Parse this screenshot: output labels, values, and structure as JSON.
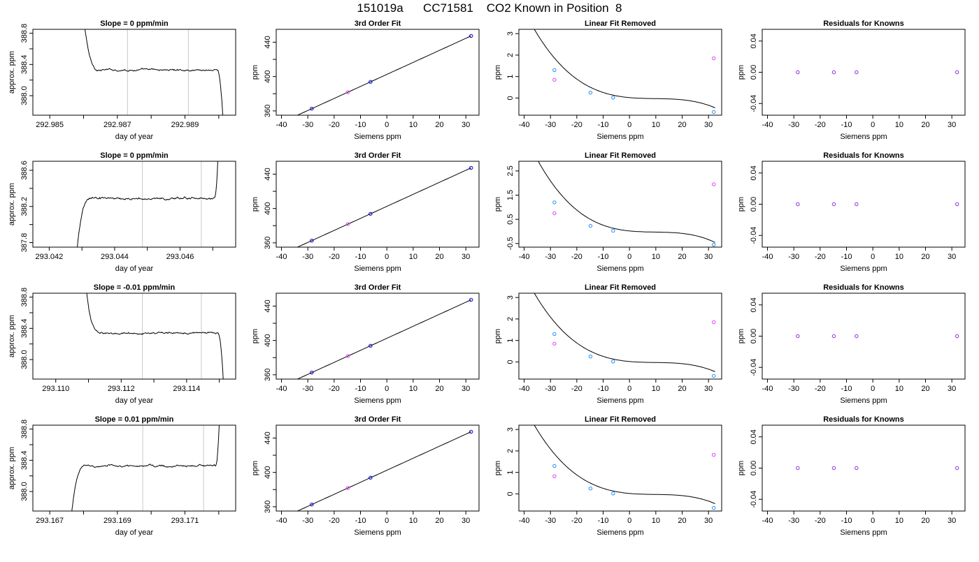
{
  "page_title": "151019a      CC71581    CO2 Known in Position  8",
  "colors": {
    "trace": "#000000",
    "window_lines": "#c8c8c8",
    "fit_point": "#1e90ff",
    "known_point": "#0000cd",
    "raw_point": "#e040fb",
    "residual_point": "#8a2be2"
  },
  "chart_data": [
    {
      "type": "line",
      "row": 1,
      "title": "Slope =  0  ppm/min",
      "xlabel": "day of year",
      "ylabel": "approx. ppm",
      "xlim": [
        292.9845,
        292.9905
      ],
      "ylim": [
        387.75,
        388.85
      ],
      "xticks": [
        292.985,
        292.986,
        292.987,
        292.988,
        292.989,
        292.99
      ],
      "xtick_labels": [
        "292.985",
        "",
        "292.987",
        "",
        "292.989",
        ""
      ],
      "yticks": [
        388.0,
        388.2,
        388.4,
        388.6,
        388.8
      ],
      "ytick_labels": [
        "388.0",
        "",
        "388.4",
        "",
        "388.8"
      ],
      "vlines": [
        292.9873,
        292.9891
      ],
      "trace": {
        "x_start": 292.9859,
        "x_end": 292.99015,
        "level": 388.33,
        "start_value": 389.5,
        "end_value": 387.5,
        "rise_end": 292.9865,
        "fall_start": 292.98995,
        "noise": 0.012
      },
      "points": []
    },
    {
      "type": "scatter",
      "row": 1,
      "title": "3rd Order Fit",
      "xlabel": "Siemens ppm",
      "ylabel": "ppm",
      "xlim": [
        -42,
        35
      ],
      "ylim": [
        355,
        455
      ],
      "xticks": [
        -40,
        -30,
        -20,
        -10,
        0,
        10,
        20,
        30
      ],
      "yticks": [
        360,
        380,
        400,
        420,
        440
      ],
      "ytick_labels": [
        "360",
        "",
        "400",
        "",
        "440"
      ],
      "curve": [
        -40,
        32
      ],
      "line_fn": "linear",
      "line_coef": [
        402.5,
        1.4,
        0,
        0
      ],
      "points": [
        {
          "x": -28.5,
          "y": 362.6,
          "color": "#0000cd"
        },
        {
          "x": -14.8,
          "y": 381.8,
          "color": "#e040fb"
        },
        {
          "x": -6.2,
          "y": 393.8,
          "color": "#0000cd"
        },
        {
          "x": 32.0,
          "y": 447.3,
          "color": "#0000cd"
        }
      ]
    },
    {
      "type": "scatter",
      "row": 1,
      "title": "Linear Fit Removed",
      "xlabel": "Siemens ppm",
      "ylabel": "ppm",
      "xlim": [
        -42,
        35
      ],
      "ylim": [
        -0.8,
        3.2
      ],
      "xticks": [
        -40,
        -30,
        -20,
        -10,
        0,
        10,
        20,
        30
      ],
      "yticks": [
        0,
        1,
        2,
        3
      ],
      "ytick_labels": [
        "0",
        "1",
        "2",
        "3"
      ],
      "curve": [
        -39,
        32.5
      ],
      "line_fn": "cubic",
      "line_coef": [
        0.02,
        -0.011,
        0.00095,
        -3.27e-05
      ],
      "points": [
        {
          "x": -28.5,
          "y": 1.3,
          "color": "#1e90ff"
        },
        {
          "x": -28.5,
          "y": 0.85,
          "color": "#e040fb"
        },
        {
          "x": -14.8,
          "y": 0.25,
          "color": "#1e90ff"
        },
        {
          "x": -6.2,
          "y": 0.02,
          "color": "#1e90ff"
        },
        {
          "x": 32.0,
          "y": 1.85,
          "color": "#e040fb"
        },
        {
          "x": 32.0,
          "y": -0.65,
          "color": "#1e90ff"
        }
      ]
    },
    {
      "type": "scatter",
      "row": 1,
      "title": "Residuals for Knowns",
      "xlabel": "Siemens ppm",
      "ylabel": "ppm",
      "xlim": [
        -42,
        35
      ],
      "ylim": [
        -0.055,
        0.055
      ],
      "xticks": [
        -40,
        -30,
        -20,
        -10,
        0,
        10,
        20,
        30
      ],
      "yticks": [
        -0.04,
        0.0,
        0.04
      ],
      "ytick_labels": [
        "-0.04",
        "0.00",
        "0.04"
      ],
      "points": [
        {
          "x": -28.5,
          "y": 0,
          "color": "#8a2be2"
        },
        {
          "x": -14.8,
          "y": 0,
          "color": "#8a2be2"
        },
        {
          "x": -6.2,
          "y": 0,
          "color": "#8a2be2"
        },
        {
          "x": 32.0,
          "y": 0,
          "color": "#8a2be2"
        }
      ]
    },
    {
      "type": "line",
      "row": 2,
      "title": "Slope =  0  ppm/min",
      "xlabel": "day of year",
      "ylabel": "approx. ppm",
      "xlim": [
        293.0415,
        293.0477
      ],
      "ylim": [
        387.75,
        388.7
      ],
      "xticks": [
        293.042,
        293.043,
        293.044,
        293.045,
        293.046,
        293.047
      ],
      "xtick_labels": [
        "293.042",
        "",
        "293.044",
        "",
        "293.046",
        ""
      ],
      "yticks": [
        387.8,
        388.0,
        388.2,
        388.4,
        388.6
      ],
      "ytick_labels": [
        "387.8",
        "",
        "388.2",
        "",
        "388.6"
      ],
      "vlines": [
        293.04485,
        293.04665
      ],
      "trace": {
        "x_start": 293.0428,
        "x_end": 293.0472,
        "level": 388.29,
        "start_value": 387.5,
        "end_value": 389.2,
        "rise_end": 293.0433,
        "fall_start": 293.04705,
        "noise": 0.012
      },
      "points": []
    },
    {
      "type": "scatter",
      "row": 2,
      "title": "3rd Order Fit",
      "xlabel": "Siemens ppm",
      "ylabel": "ppm",
      "xlim": [
        -42,
        35
      ],
      "ylim": [
        355,
        455
      ],
      "xticks": [
        -40,
        -30,
        -20,
        -10,
        0,
        10,
        20,
        30
      ],
      "yticks": [
        360,
        380,
        400,
        420,
        440
      ],
      "ytick_labels": [
        "360",
        "",
        "400",
        "",
        "440"
      ],
      "curve": [
        -40,
        32
      ],
      "line_fn": "linear",
      "line_coef": [
        402.5,
        1.4,
        0,
        0
      ],
      "points": [
        {
          "x": -28.5,
          "y": 362.6,
          "color": "#0000cd"
        },
        {
          "x": -14.8,
          "y": 381.8,
          "color": "#e040fb"
        },
        {
          "x": -6.2,
          "y": 393.8,
          "color": "#0000cd"
        },
        {
          "x": 32.0,
          "y": 447.3,
          "color": "#0000cd"
        }
      ]
    },
    {
      "type": "scatter",
      "row": 2,
      "title": "Linear Fit Removed",
      "xlabel": "Siemens ppm",
      "ylabel": "ppm",
      "xlim": [
        -42,
        35
      ],
      "ylim": [
        -0.65,
        2.9
      ],
      "xticks": [
        -40,
        -30,
        -20,
        -10,
        0,
        10,
        20,
        30
      ],
      "yticks": [
        -0.5,
        0.5,
        1.5,
        2.5
      ],
      "ytick_labels": [
        "-0.5",
        "0.5",
        "1.5",
        "2.5"
      ],
      "curve": [
        -39,
        32.5
      ],
      "line_fn": "cubic",
      "line_coef": [
        0.02,
        -0.011,
        0.00095,
        -3.27e-05
      ],
      "points": [
        {
          "x": -28.5,
          "y": 1.2,
          "color": "#1e90ff"
        },
        {
          "x": -28.5,
          "y": 0.75,
          "color": "#e040fb"
        },
        {
          "x": -14.8,
          "y": 0.23,
          "color": "#1e90ff"
        },
        {
          "x": -6.2,
          "y": 0.03,
          "color": "#1e90ff"
        },
        {
          "x": 32.0,
          "y": 1.95,
          "color": "#e040fb"
        },
        {
          "x": 32.0,
          "y": -0.55,
          "color": "#1e90ff"
        }
      ]
    },
    {
      "type": "scatter",
      "row": 2,
      "title": "Residuals for Knowns",
      "xlabel": "Siemens ppm",
      "ylabel": "ppm",
      "xlim": [
        -42,
        35
      ],
      "ylim": [
        -0.055,
        0.055
      ],
      "xticks": [
        -40,
        -30,
        -20,
        -10,
        0,
        10,
        20,
        30
      ],
      "yticks": [
        -0.04,
        0.0,
        0.04
      ],
      "ytick_labels": [
        "-0.04",
        "0.00",
        "0.04"
      ],
      "points": [
        {
          "x": -28.5,
          "y": 0,
          "color": "#8a2be2"
        },
        {
          "x": -14.8,
          "y": 0,
          "color": "#8a2be2"
        },
        {
          "x": -6.2,
          "y": 0,
          "color": "#8a2be2"
        },
        {
          "x": 32.0,
          "y": 0,
          "color": "#8a2be2"
        }
      ]
    },
    {
      "type": "line",
      "row": 3,
      "title": "Slope =  -0.01  ppm/min",
      "xlabel": "day of year",
      "ylabel": "approx. ppm",
      "xlim": [
        293.1093,
        293.1155
      ],
      "ylim": [
        387.75,
        388.85
      ],
      "xticks": [
        293.11,
        293.111,
        293.112,
        293.113,
        293.114,
        293.115
      ],
      "xtick_labels": [
        "293.110",
        "",
        "293.112",
        "",
        "293.114",
        ""
      ],
      "yticks": [
        388.0,
        388.2,
        388.4,
        388.6,
        388.8
      ],
      "ytick_labels": [
        "388.0",
        "",
        "388.4",
        "",
        "388.8"
      ],
      "vlines": [
        293.11265,
        293.11445
      ],
      "trace": {
        "x_start": 293.1108,
        "x_end": 293.11515,
        "level": 388.34,
        "start_value": 389.5,
        "end_value": 387.5,
        "rise_end": 293.1114,
        "fall_start": 293.11495,
        "noise": 0.012
      },
      "points": []
    },
    {
      "type": "scatter",
      "row": 3,
      "title": "3rd Order Fit",
      "xlabel": "Siemens ppm",
      "ylabel": "ppm",
      "xlim": [
        -42,
        35
      ],
      "ylim": [
        355,
        455
      ],
      "xticks": [
        -40,
        -30,
        -20,
        -10,
        0,
        10,
        20,
        30
      ],
      "yticks": [
        360,
        380,
        400,
        420,
        440
      ],
      "ytick_labels": [
        "360",
        "",
        "400",
        "",
        "440"
      ],
      "curve": [
        -40,
        32
      ],
      "line_fn": "linear",
      "line_coef": [
        402.5,
        1.4,
        0,
        0
      ],
      "points": [
        {
          "x": -28.5,
          "y": 362.6,
          "color": "#0000cd"
        },
        {
          "x": -14.8,
          "y": 381.8,
          "color": "#e040fb"
        },
        {
          "x": -6.2,
          "y": 393.8,
          "color": "#0000cd"
        },
        {
          "x": 32.0,
          "y": 447.3,
          "color": "#0000cd"
        }
      ]
    },
    {
      "type": "scatter",
      "row": 3,
      "title": "Linear Fit Removed",
      "xlabel": "Siemens ppm",
      "ylabel": "ppm",
      "xlim": [
        -42,
        35
      ],
      "ylim": [
        -0.8,
        3.2
      ],
      "xticks": [
        -40,
        -30,
        -20,
        -10,
        0,
        10,
        20,
        30
      ],
      "yticks": [
        0,
        1,
        2,
        3
      ],
      "ytick_labels": [
        "0",
        "1",
        "2",
        "3"
      ],
      "curve": [
        -39,
        32.5
      ],
      "line_fn": "cubic",
      "line_coef": [
        0.02,
        -0.011,
        0.00095,
        -3.27e-05
      ],
      "points": [
        {
          "x": -28.5,
          "y": 1.3,
          "color": "#1e90ff"
        },
        {
          "x": -28.5,
          "y": 0.85,
          "color": "#e040fb"
        },
        {
          "x": -14.8,
          "y": 0.25,
          "color": "#1e90ff"
        },
        {
          "x": -6.2,
          "y": 0.02,
          "color": "#1e90ff"
        },
        {
          "x": 32.0,
          "y": 1.85,
          "color": "#e040fb"
        },
        {
          "x": 32.0,
          "y": -0.65,
          "color": "#1e90ff"
        }
      ]
    },
    {
      "type": "scatter",
      "row": 3,
      "title": "Residuals for Knowns",
      "xlabel": "Siemens ppm",
      "ylabel": "ppm",
      "xlim": [
        -42,
        35
      ],
      "ylim": [
        -0.055,
        0.055
      ],
      "xticks": [
        -40,
        -30,
        -20,
        -10,
        0,
        10,
        20,
        30
      ],
      "yticks": [
        -0.04,
        0.0,
        0.04
      ],
      "ytick_labels": [
        "-0.04",
        "0.00",
        "0.04"
      ],
      "points": [
        {
          "x": -28.5,
          "y": 0,
          "color": "#8a2be2"
        },
        {
          "x": -14.8,
          "y": 0,
          "color": "#8a2be2"
        },
        {
          "x": -6.2,
          "y": 0,
          "color": "#8a2be2"
        },
        {
          "x": 32.0,
          "y": 0,
          "color": "#8a2be2"
        }
      ]
    },
    {
      "type": "line",
      "row": 4,
      "title": "Slope =  0.01  ppm/min",
      "xlabel": "day of year",
      "ylabel": "approx. ppm",
      "xlim": [
        293.1665,
        293.1725
      ],
      "ylim": [
        387.75,
        388.85
      ],
      "xticks": [
        293.167,
        293.168,
        293.169,
        293.17,
        293.171,
        293.172
      ],
      "xtick_labels": [
        "293.167",
        "",
        "293.169",
        "",
        "293.171",
        ""
      ],
      "yticks": [
        388.0,
        388.2,
        388.4,
        388.6,
        388.8
      ],
      "ytick_labels": [
        "388.0",
        "",
        "388.4",
        "",
        "388.8"
      ],
      "vlines": [
        293.16975,
        293.17155
      ],
      "trace": {
        "x_start": 293.1676,
        "x_end": 293.17205,
        "level": 388.33,
        "start_value": 387.5,
        "end_value": 389.3,
        "rise_end": 293.1681,
        "fall_start": 293.1719,
        "noise": 0.013
      },
      "points": []
    },
    {
      "type": "scatter",
      "row": 4,
      "title": "3rd Order Fit",
      "xlabel": "Siemens ppm",
      "ylabel": "ppm",
      "xlim": [
        -42,
        35
      ],
      "ylim": [
        355,
        455
      ],
      "xticks": [
        -40,
        -30,
        -20,
        -10,
        0,
        10,
        20,
        30
      ],
      "yticks": [
        360,
        380,
        400,
        420,
        440
      ],
      "ytick_labels": [
        "360",
        "",
        "400",
        "",
        "440"
      ],
      "curve": [
        -40,
        32
      ],
      "line_fn": "linear",
      "line_coef": [
        402.5,
        1.4,
        0,
        0
      ],
      "points": [
        {
          "x": -28.5,
          "y": 362.6,
          "color": "#0000cd"
        },
        {
          "x": -14.8,
          "y": 381.8,
          "color": "#e040fb"
        },
        {
          "x": -6.2,
          "y": 393.8,
          "color": "#0000cd"
        },
        {
          "x": 32.0,
          "y": 447.3,
          "color": "#0000cd"
        }
      ]
    },
    {
      "type": "scatter",
      "row": 4,
      "title": "Linear Fit Removed",
      "xlabel": "Siemens ppm",
      "ylabel": "ppm",
      "xlim": [
        -42,
        35
      ],
      "ylim": [
        -0.8,
        3.2
      ],
      "xticks": [
        -40,
        -30,
        -20,
        -10,
        0,
        10,
        20,
        30
      ],
      "yticks": [
        0,
        1,
        2,
        3
      ],
      "ytick_labels": [
        "0",
        "1",
        "2",
        "3"
      ],
      "curve": [
        -39,
        32.5
      ],
      "line_fn": "cubic",
      "line_coef": [
        0.02,
        -0.011,
        0.00095,
        -3.27e-05
      ],
      "points": [
        {
          "x": -28.5,
          "y": 1.3,
          "color": "#1e90ff"
        },
        {
          "x": -28.5,
          "y": 0.82,
          "color": "#e040fb"
        },
        {
          "x": -14.8,
          "y": 0.25,
          "color": "#1e90ff"
        },
        {
          "x": -6.2,
          "y": 0.02,
          "color": "#1e90ff"
        },
        {
          "x": 32.0,
          "y": 1.82,
          "color": "#e040fb"
        },
        {
          "x": 32.0,
          "y": -0.65,
          "color": "#1e90ff"
        }
      ]
    },
    {
      "type": "scatter",
      "row": 4,
      "title": "Residuals for Knowns",
      "xlabel": "Siemens ppm",
      "ylabel": "ppm",
      "xlim": [
        -42,
        35
      ],
      "ylim": [
        -0.055,
        0.055
      ],
      "xticks": [
        -40,
        -30,
        -20,
        -10,
        0,
        10,
        20,
        30
      ],
      "yticks": [
        -0.04,
        0.0,
        0.04
      ],
      "ytick_labels": [
        "-0.04",
        "0.00",
        "0.04"
      ],
      "points": [
        {
          "x": -28.5,
          "y": 0,
          "color": "#8a2be2"
        },
        {
          "x": -14.8,
          "y": 0,
          "color": "#8a2be2"
        },
        {
          "x": -6.2,
          "y": 0,
          "color": "#8a2be2"
        },
        {
          "x": 32.0,
          "y": 0,
          "color": "#8a2be2"
        }
      ]
    }
  ]
}
